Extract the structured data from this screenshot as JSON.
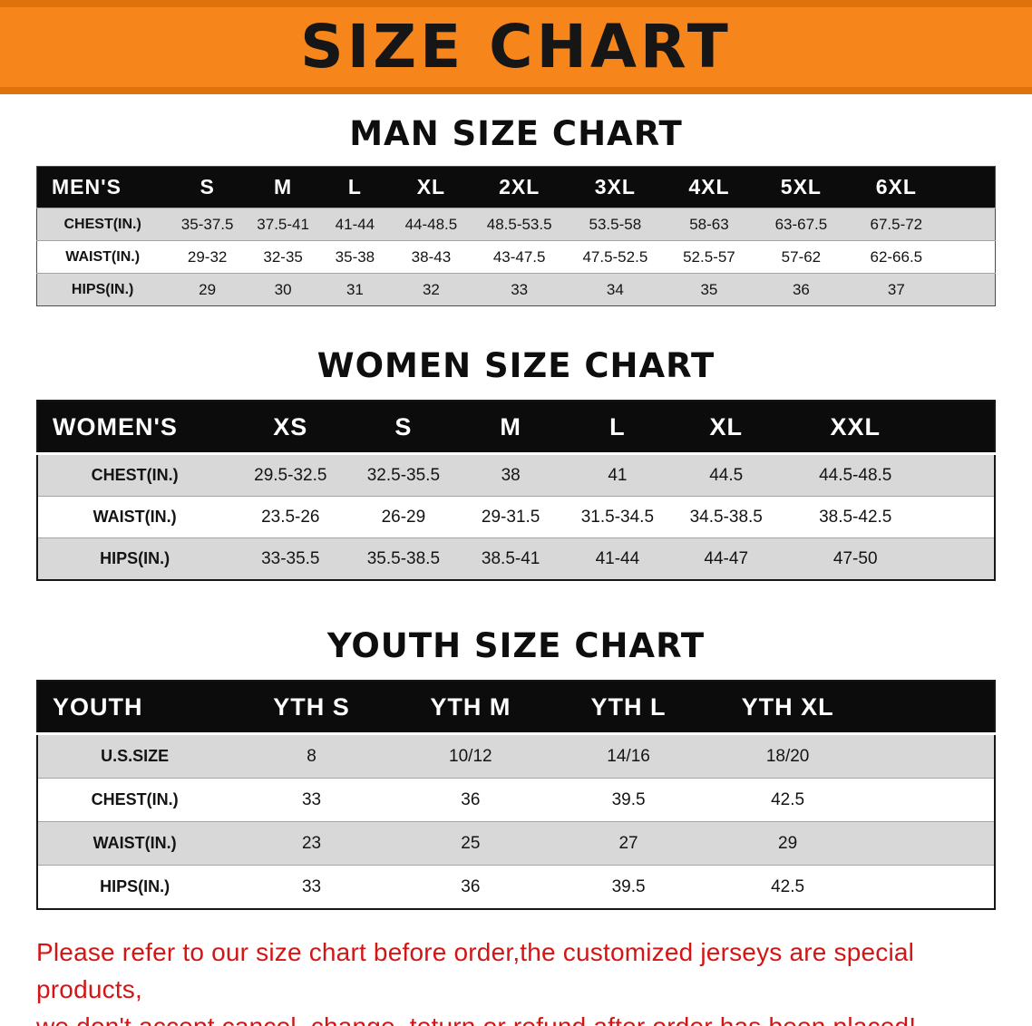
{
  "banner": {
    "title": "SIZE CHART"
  },
  "chart_data": [
    {
      "type": "table",
      "title": "MAN SIZE CHART",
      "columns": [
        "MEN'S",
        "S",
        "M",
        "L",
        "XL",
        "2XL",
        "3XL",
        "4XL",
        "5XL",
        "6XL"
      ],
      "rows": [
        [
          "CHEST(IN.)",
          "35-37.5",
          "37.5-41",
          "41-44",
          "44-48.5",
          "48.5-53.5",
          "53.5-58",
          "58-63",
          "63-67.5",
          "67.5-72"
        ],
        [
          "WAIST(IN.)",
          "29-32",
          "32-35",
          "35-38",
          "38-43",
          "43-47.5",
          "47.5-52.5",
          "52.5-57",
          "57-62",
          "62-66.5"
        ],
        [
          "HIPS(IN.)",
          "29",
          "30",
          "31",
          "32",
          "33",
          "34",
          "35",
          "36",
          "37"
        ]
      ]
    },
    {
      "type": "table",
      "title": "WOMEN SIZE CHART",
      "columns": [
        "WOMEN'S",
        "XS",
        "S",
        "M",
        "L",
        "XL",
        "XXL"
      ],
      "rows": [
        [
          "CHEST(IN.)",
          "29.5-32.5",
          "32.5-35.5",
          "38",
          "41",
          "44.5",
          "44.5-48.5"
        ],
        [
          "WAIST(IN.)",
          "23.5-26",
          "26-29",
          "29-31.5",
          "31.5-34.5",
          "34.5-38.5",
          "38.5-42.5"
        ],
        [
          "HIPS(IN.)",
          "33-35.5",
          "35.5-38.5",
          "38.5-41",
          "41-44",
          "44-47",
          "47-50"
        ]
      ]
    },
    {
      "type": "table",
      "title": "YOUTH SIZE CHART",
      "columns": [
        "YOUTH",
        "YTH S",
        "YTH M",
        "YTH L",
        "YTH XL"
      ],
      "rows": [
        [
          "U.S.SIZE",
          "8",
          "10/12",
          "14/16",
          "18/20"
        ],
        [
          "CHEST(IN.)",
          "33",
          "36",
          "39.5",
          "42.5"
        ],
        [
          "WAIST(IN.)",
          "23",
          "25",
          "27",
          "29"
        ],
        [
          "HIPS(IN.)",
          "33",
          "36",
          "39.5",
          "42.5"
        ]
      ]
    }
  ],
  "footer": {
    "line1": "Please refer to our size chart before order,the customized jerseys are special products,",
    "line2": "we don't accept cancel, change, teturn or refund after order has been placed!"
  },
  "colors": {
    "banner_orange": "#f6861c",
    "banner_edge": "#e0720e",
    "table_header_black": "#0c0c0c",
    "stripe_gray": "#d8d8d8",
    "disclaimer_red": "#d21616"
  }
}
